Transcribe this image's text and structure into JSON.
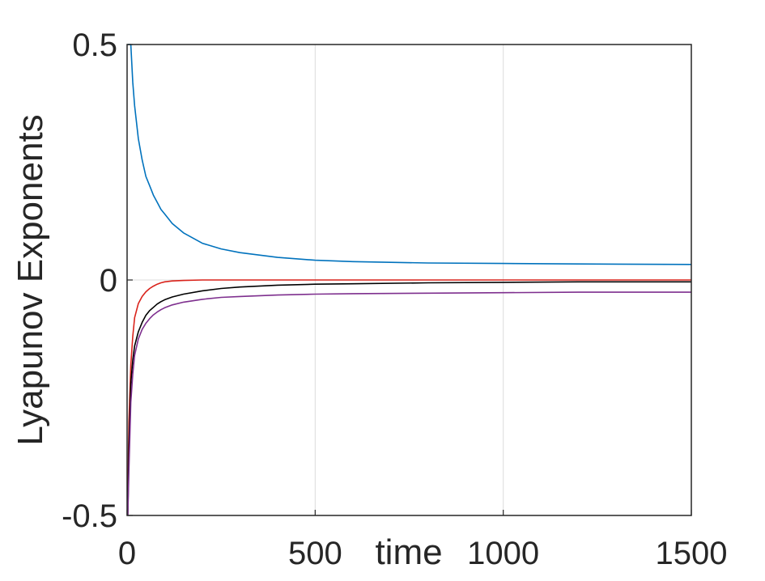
{
  "chart_data": {
    "type": "line",
    "title": "",
    "xlabel": "time",
    "ylabel": "Lyapunov Exponents",
    "xlim": [
      0,
      1500
    ],
    "ylim": [
      -0.5,
      0.5
    ],
    "x_ticks": [
      0,
      500,
      1000,
      1500
    ],
    "x_tick_labels": [
      "0",
      "500",
      "1000",
      "1500"
    ],
    "y_ticks": [
      -0.5,
      0,
      0.5
    ],
    "y_tick_labels": [
      "-0.5",
      "0",
      "0.5"
    ],
    "grid": true,
    "x": [
      2,
      5,
      10,
      15,
      20,
      30,
      40,
      50,
      60,
      70,
      80,
      90,
      100,
      120,
      150,
      200,
      250,
      300,
      400,
      500,
      600,
      800,
      1000,
      1200,
      1500
    ],
    "series": [
      {
        "color": "#0072bd",
        "values": [
          0.5,
          0.5,
          0.5,
          0.42,
          0.37,
          0.3,
          0.255,
          0.22,
          0.2,
          0.18,
          0.165,
          0.15,
          0.14,
          0.12,
          0.1,
          0.078,
          0.066,
          0.058,
          0.048,
          0.042,
          0.039,
          0.036,
          0.035,
          0.034,
          0.033
        ]
      },
      {
        "color": "#d9231b",
        "values": [
          -0.45,
          -0.3,
          -0.18,
          -0.12,
          -0.08,
          -0.05,
          -0.035,
          -0.025,
          -0.018,
          -0.013,
          -0.009,
          -0.006,
          -0.004,
          -0.002,
          -0.001,
          0.0,
          0.0,
          0.0,
          0.0,
          0.0,
          0.0,
          0.0,
          0.0,
          0.0,
          0.0
        ]
      },
      {
        "color": "#000000",
        "values": [
          -0.5,
          -0.35,
          -0.22,
          -0.17,
          -0.14,
          -0.11,
          -0.09,
          -0.075,
          -0.065,
          -0.058,
          -0.051,
          -0.046,
          -0.042,
          -0.036,
          -0.03,
          -0.023,
          -0.018,
          -0.015,
          -0.011,
          -0.009,
          -0.008,
          -0.006,
          -0.005,
          -0.004,
          -0.004
        ]
      },
      {
        "color": "#7e2f8e",
        "values": [
          -0.5,
          -0.4,
          -0.26,
          -0.2,
          -0.16,
          -0.125,
          -0.105,
          -0.092,
          -0.082,
          -0.074,
          -0.068,
          -0.063,
          -0.059,
          -0.053,
          -0.047,
          -0.041,
          -0.037,
          -0.035,
          -0.032,
          -0.03,
          -0.029,
          -0.028,
          -0.027,
          -0.026,
          -0.026
        ]
      }
    ]
  }
}
